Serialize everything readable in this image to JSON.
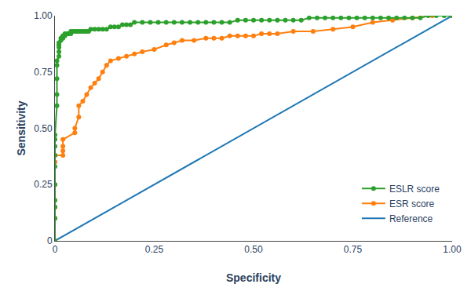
{
  "chart_data": {
    "type": "line",
    "xlabel": "Specificity",
    "ylabel": "Sensitivity",
    "series": [
      {
        "name": "Reference",
        "x": [
          0,
          1
        ],
        "values": [
          0,
          1
        ]
      },
      {
        "name": "ESR score",
        "marker": "circle",
        "x": [
          0.0,
          0.0,
          0.0,
          0.0,
          0.0,
          0.0,
          0.02,
          0.02,
          0.02,
          0.02,
          0.05,
          0.05,
          0.06,
          0.06,
          0.07,
          0.08,
          0.09,
          0.1,
          0.11,
          0.12,
          0.13,
          0.14,
          0.16,
          0.18,
          0.2,
          0.22,
          0.25,
          0.28,
          0.3,
          0.32,
          0.35,
          0.38,
          0.4,
          0.42,
          0.44,
          0.46,
          0.48,
          0.5,
          0.52,
          0.54,
          0.56,
          0.6,
          0.65,
          0.7,
          0.75,
          0.8,
          0.85,
          0.9,
          0.95,
          1.0
        ],
        "values": [
          0.0,
          0.1,
          0.15,
          0.25,
          0.35,
          0.38,
          0.38,
          0.4,
          0.42,
          0.45,
          0.48,
          0.5,
          0.55,
          0.6,
          0.62,
          0.65,
          0.68,
          0.7,
          0.72,
          0.75,
          0.78,
          0.8,
          0.81,
          0.82,
          0.83,
          0.84,
          0.85,
          0.87,
          0.88,
          0.89,
          0.89,
          0.9,
          0.9,
          0.9,
          0.91,
          0.91,
          0.91,
          0.91,
          0.92,
          0.92,
          0.92,
          0.93,
          0.93,
          0.94,
          0.95,
          0.97,
          0.98,
          0.99,
          1.0,
          1.0
        ]
      },
      {
        "name": "ESLR score",
        "marker": "circle",
        "x": [
          0.0,
          0.0,
          0.0,
          0.0,
          0.0,
          0.0,
          0.0,
          0.0,
          0.0,
          0.0,
          0.005,
          0.005,
          0.005,
          0.005,
          0.005,
          0.01,
          0.01,
          0.01,
          0.01,
          0.01,
          0.015,
          0.015,
          0.02,
          0.02,
          0.02,
          0.025,
          0.025,
          0.03,
          0.03,
          0.035,
          0.04,
          0.04,
          0.045,
          0.05,
          0.055,
          0.06,
          0.065,
          0.07,
          0.075,
          0.08,
          0.085,
          0.09,
          0.1,
          0.11,
          0.12,
          0.13,
          0.14,
          0.15,
          0.16,
          0.17,
          0.18,
          0.19,
          0.2,
          0.22,
          0.24,
          0.26,
          0.28,
          0.3,
          0.32,
          0.34,
          0.36,
          0.38,
          0.4,
          0.42,
          0.44,
          0.46,
          0.48,
          0.5,
          0.52,
          0.54,
          0.56,
          0.58,
          0.6,
          0.62,
          0.64,
          0.66,
          0.68,
          0.7,
          0.72,
          0.74,
          0.76,
          0.78,
          0.8,
          0.82,
          0.84,
          0.86,
          0.88,
          0.9,
          0.92,
          0.94,
          0.96,
          0.98,
          1.0
        ],
        "values": [
          0.0,
          0.1,
          0.15,
          0.18,
          0.25,
          0.33,
          0.38,
          0.42,
          0.45,
          0.47,
          0.6,
          0.65,
          0.72,
          0.78,
          0.8,
          0.82,
          0.84,
          0.86,
          0.87,
          0.88,
          0.89,
          0.9,
          0.9,
          0.91,
          0.91,
          0.91,
          0.92,
          0.92,
          0.92,
          0.92,
          0.92,
          0.93,
          0.93,
          0.93,
          0.93,
          0.93,
          0.93,
          0.93,
          0.93,
          0.93,
          0.93,
          0.94,
          0.94,
          0.94,
          0.94,
          0.94,
          0.95,
          0.95,
          0.95,
          0.96,
          0.96,
          0.96,
          0.97,
          0.97,
          0.97,
          0.97,
          0.97,
          0.97,
          0.97,
          0.97,
          0.97,
          0.97,
          0.97,
          0.97,
          0.97,
          0.98,
          0.98,
          0.98,
          0.98,
          0.98,
          0.98,
          0.98,
          0.98,
          0.98,
          0.99,
          0.99,
          0.99,
          0.99,
          0.99,
          0.99,
          0.99,
          0.99,
          0.99,
          0.99,
          0.99,
          0.99,
          0.99,
          0.99,
          0.99,
          1.0,
          1.0,
          1.0,
          1.0
        ]
      }
    ],
    "xlim": [
      0,
      1
    ],
    "ylim": [
      0,
      1
    ],
    "xticks": [
      0,
      0.25,
      {
        "value": 0.5,
        "label": "0.50"
      },
      0.75,
      {
        "value": 1,
        "label": "1.00"
      }
    ],
    "yticks": [
      0,
      0.25,
      {
        "value": 0.5,
        "label": "0.50"
      },
      0.75,
      {
        "value": 1,
        "label": "1.00"
      }
    ],
    "grid": false,
    "legend": "lower right"
  }
}
